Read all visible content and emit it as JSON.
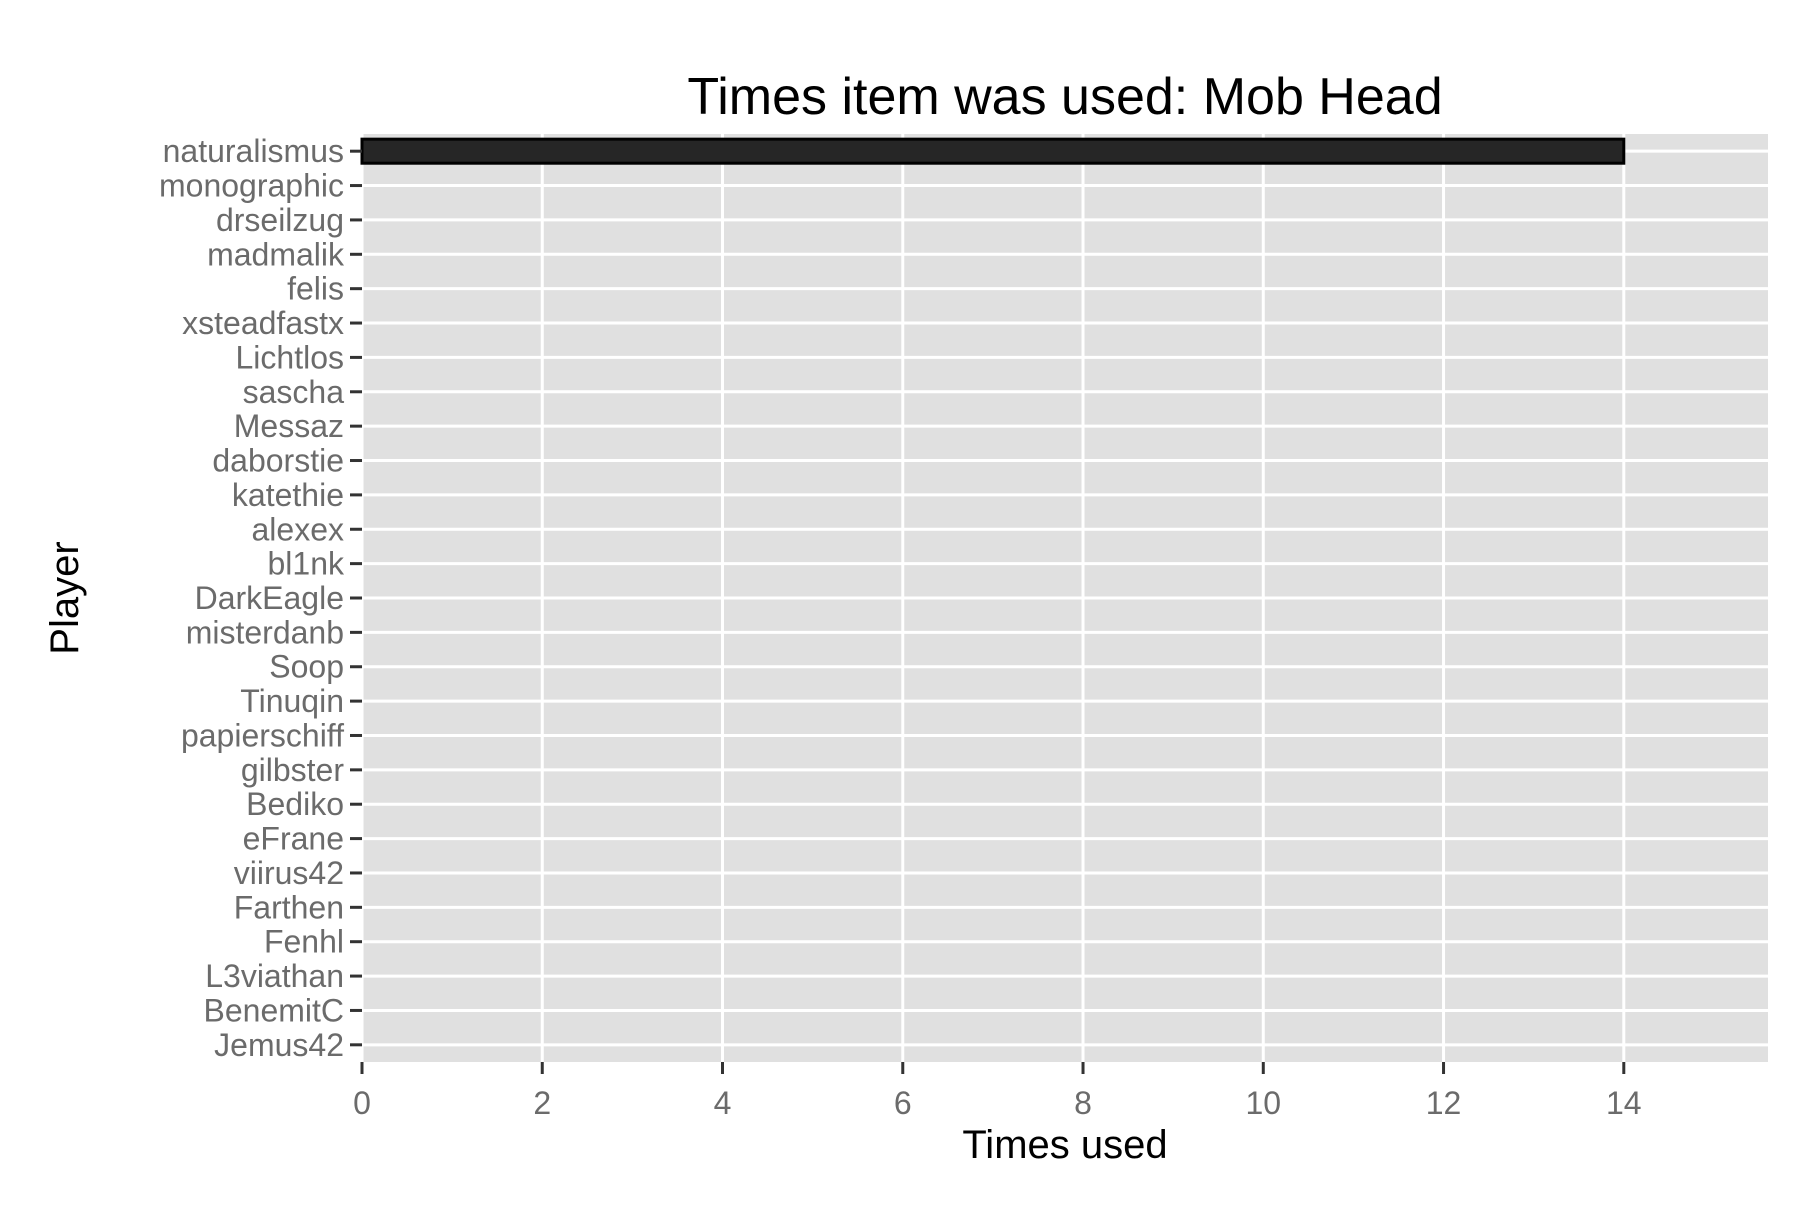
{
  "chart_data": {
    "type": "bar",
    "orientation": "horizontal",
    "title": "Times item was used: Mob Head",
    "xlabel": "Times used",
    "ylabel": "Player",
    "categories": [
      "naturalismus",
      "monographic",
      "drseilzug",
      "madmalik",
      "felis",
      "xsteadfastx",
      "Lichtlos",
      "sascha",
      "Messaz",
      "daborstie",
      "katethie",
      "alexex",
      "bl1nk",
      "DarkEagle",
      "misterdanb",
      "Soop",
      "Tinuqin",
      "papierschiff",
      "gilbster",
      "Bediko",
      "eFrane",
      "viirus42",
      "Farthen",
      "Fenhl",
      "L3viathan",
      "BenemitC",
      "Jemus42"
    ],
    "values": [
      14,
      0,
      0,
      0,
      0,
      0,
      0,
      0,
      0,
      0,
      0,
      0,
      0,
      0,
      0,
      0,
      0,
      0,
      0,
      0,
      0,
      0,
      0,
      0,
      0,
      0,
      0
    ],
    "xlim": [
      0,
      15.6
    ],
    "xticks": [
      0,
      2,
      4,
      6,
      8,
      10,
      12,
      14
    ],
    "grid": true,
    "legend": "none",
    "colors": {
      "panel_background": "#e0e0e0",
      "grid": "#ffffff",
      "bar_fill": "#262626",
      "bar_outline": "#000000",
      "tick_mark": "#333333",
      "tick_label": "#6b6b6b"
    }
  }
}
